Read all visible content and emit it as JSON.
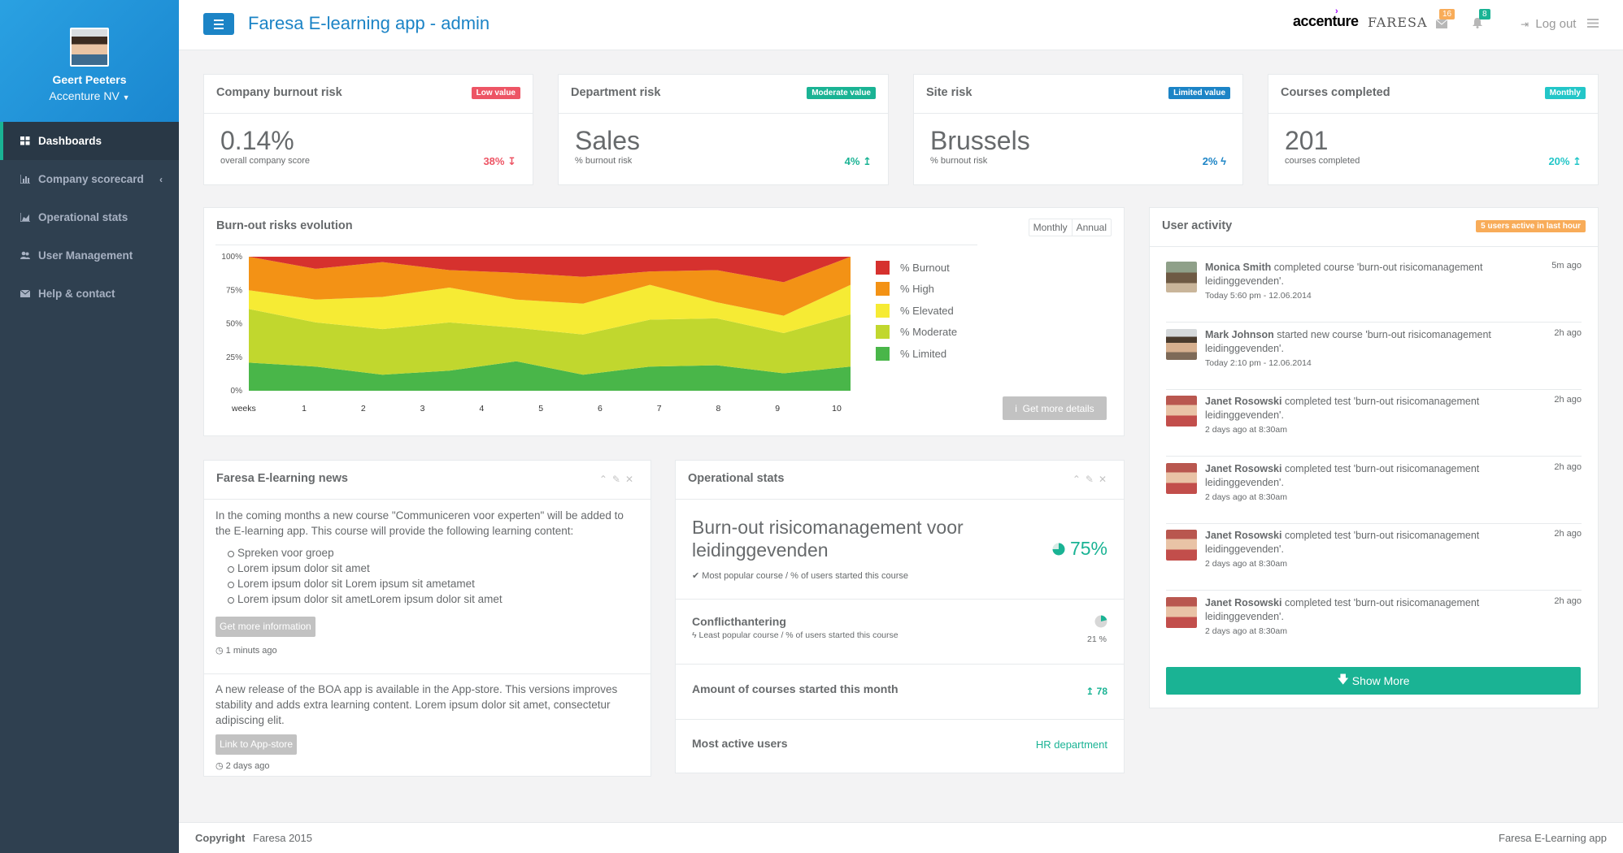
{
  "sidebar": {
    "user_name": "Geert Peeters",
    "company": "Accenture NV",
    "items": [
      {
        "label": "Dashboards",
        "icon": "th-large-icon"
      },
      {
        "label": "Company scorecard",
        "icon": "bar-chart-icon"
      },
      {
        "label": "Operational stats",
        "icon": "area-chart-icon"
      },
      {
        "label": "User Management",
        "icon": "users-icon"
      },
      {
        "label": "Help & contact",
        "icon": "envelope-icon"
      }
    ]
  },
  "header": {
    "title": "Faresa E-learning app - admin",
    "brand1": "accenture",
    "brand2": "FARESA",
    "mail_count": "16",
    "bell_count": "8",
    "logout": "Log out"
  },
  "kpis": [
    {
      "title": "Company burnout risk",
      "label": "Low value",
      "label_color": "#ed5565",
      "value": "0.14%",
      "sub": "overall company score",
      "stat": "38%",
      "stat_icon": "↧",
      "stat_color": "#ed5565"
    },
    {
      "title": "Department risk",
      "label": "Moderate value",
      "label_color": "#1ab394",
      "value": "Sales",
      "sub": "% burnout risk",
      "stat": "4%",
      "stat_icon": "↥",
      "stat_color": "#1ab394"
    },
    {
      "title": "Site risk",
      "label": "Limited value",
      "label_color": "#1c84c6",
      "value": "Brussels",
      "sub": "% burnout risk",
      "stat": "2%",
      "stat_icon": "ϟ",
      "stat_color": "#1c84c6"
    },
    {
      "title": "Courses completed",
      "label": "Monthly",
      "label_color": "#23c6c8",
      "value": "201",
      "sub": "courses completed",
      "stat": "20%",
      "stat_icon": "↥",
      "stat_color": "#23c6c8"
    }
  ],
  "evolution": {
    "title": "Burn-out risks evolution",
    "btn_monthly": "Monthly",
    "btn_annual": "Annual",
    "details": "Get more details"
  },
  "chart_data": {
    "type": "area",
    "stacked": true,
    "x": [
      1,
      2,
      3,
      4,
      5,
      6,
      7,
      8,
      9,
      10
    ],
    "xlabel": "weeks",
    "ylim": [
      0,
      100
    ],
    "yticks": [
      "100%",
      "75%",
      "50%",
      "25%",
      "0%"
    ],
    "legend": "right",
    "series": [
      {
        "name": "% Limited",
        "color": "#49b649",
        "values": [
          21,
          18,
          12,
          15,
          22,
          12,
          18,
          19,
          13,
          18
        ]
      },
      {
        "name": "% Moderate",
        "color": "#c1d72e",
        "values": [
          40,
          33,
          34,
          36,
          25,
          30,
          35,
          35,
          30,
          39
        ]
      },
      {
        "name": "% Elevated",
        "color": "#f6eb34",
        "values": [
          14,
          17,
          24,
          26,
          21,
          23,
          26,
          12,
          13,
          22
        ]
      },
      {
        "name": "% High",
        "color": "#f39215",
        "values": [
          25,
          23,
          26,
          13,
          20,
          20,
          10,
          24,
          25,
          21
        ]
      },
      {
        "name": "% Burnout",
        "color": "#d6312e",
        "values": [
          0,
          9,
          4,
          10,
          12,
          15,
          11,
          10,
          19,
          0
        ]
      }
    ]
  },
  "news": {
    "title": "Faresa E-learning news",
    "text1": "In the coming months a new course \"Communiceren voor experten\" will be added to the E-learning app. This course will provide the following learning content:",
    "bullets": [
      "Spreken voor groep",
      "Lorem ipsum dolor sit amet",
      "Lorem ipsum dolor sit Lorem ipsum sit ametamet",
      "Lorem ipsum dolor sit ametLorem ipsum dolor sit amet"
    ],
    "btn1": "Get more information",
    "ts1": "1 minuts ago",
    "text2": "A new release of the BOA app is available in the App-store. This versions improves stability and adds extra learning content. Lorem ipsum dolor sit amet, consectetur adipiscing elit.",
    "btn2": "Link to App-store",
    "ts2": "2 days ago"
  },
  "opstats": {
    "title": "Operational stats",
    "course1": "Burn-out risicomanagement voor leidinggevenden",
    "course1_sub": "Most popular course / % of users started this course",
    "course1_pct": "75%",
    "course1_value": 75,
    "course2": "Conflicthantering",
    "course2_sub": "Least popular course / % of users started this course",
    "course2_pct": "21 %",
    "course2_value": 21,
    "row3": "Amount of courses started this month",
    "row3_val": "78",
    "row4": "Most active users",
    "row4_val": "HR department"
  },
  "activity": {
    "title": "User activity",
    "label": "5 users active in last hour",
    "items": [
      {
        "name": "Monica Smith",
        "action": "completed course 'burn-out risicomanagement leidinggevenden'.",
        "ts": "Today 5:60 pm - 12.06.2014",
        "ago": "5m ago"
      },
      {
        "name": "Mark Johnson",
        "action": "started new course 'burn-out risicomanagement leidinggevenden'.",
        "ts": "Today 2:10 pm - 12.06.2014",
        "ago": "2h ago"
      },
      {
        "name": "Janet Rosowski",
        "action": "completed test 'burn-out risicomanagement leidinggevenden'.",
        "ts": "2 days ago at 8:30am",
        "ago": "2h ago"
      },
      {
        "name": "Janet Rosowski",
        "action": "completed test 'burn-out risicomanagement leidinggevenden'.",
        "ts": "2 days ago at 8:30am",
        "ago": "2h ago"
      },
      {
        "name": "Janet Rosowski",
        "action": "completed test 'burn-out risicomanagement leidinggevenden'.",
        "ts": "2 days ago at 8:30am",
        "ago": "2h ago"
      },
      {
        "name": "Janet Rosowski",
        "action": "completed test 'burn-out risicomanagement leidinggevenden'.",
        "ts": "2 days ago at 8:30am",
        "ago": "2h ago"
      }
    ],
    "show_more": "Show More"
  },
  "footer": {
    "copyright": "Copyright",
    "company": "Faresa 2015",
    "right": "Faresa E-Learning app"
  }
}
